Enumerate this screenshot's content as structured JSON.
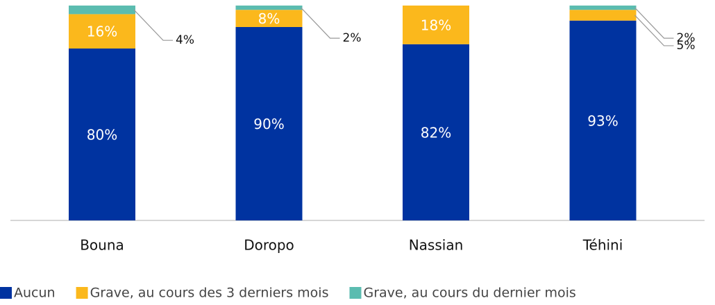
{
  "chart_data": {
    "type": "stacked_bar",
    "categories": [
      "Bouna",
      "Doropo",
      "Nassian",
      "Téhini"
    ],
    "series": [
      {
        "name": "Aucun",
        "color": "#0033a0",
        "values": [
          80,
          90,
          82,
          93
        ],
        "value_labels": [
          "80%",
          "90%",
          "82%",
          "93%"
        ]
      },
      {
        "name": "Grave, au cours des 3 derniers mois",
        "color": "#fbb81c",
        "values": [
          16,
          8,
          18,
          5
        ],
        "value_labels": [
          "16%",
          "8%",
          "18%",
          "5%"
        ]
      },
      {
        "name": "Grave, au cours du dernier mois",
        "color": "#5bbcb0",
        "values": [
          4,
          2,
          null,
          2
        ],
        "value_labels": [
          "4%",
          "2%",
          null,
          "2%"
        ]
      }
    ],
    "ylim": [
      0,
      100
    ],
    "legend": "bottom"
  }
}
